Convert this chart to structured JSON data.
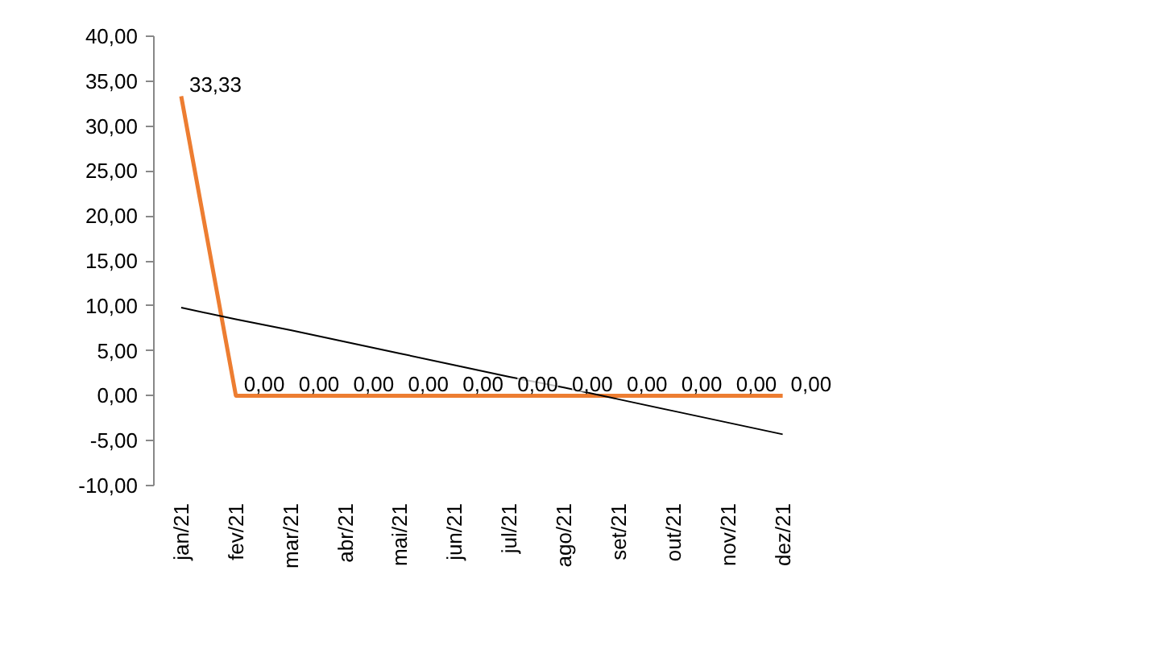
{
  "chart_data": {
    "type": "line",
    "categories": [
      "jan/21",
      "fev/21",
      "mar/21",
      "abr/21",
      "mai/21",
      "jun/21",
      "jul/21",
      "ago/21",
      "set/21",
      "out/21",
      "nov/21",
      "dez/21"
    ],
    "series": [
      {
        "color": "#ed7d31",
        "values": [
          33.33,
          0,
          0,
          0,
          0,
          0,
          0,
          0,
          0,
          0,
          0,
          0
        ],
        "value_labels": [
          "33,33",
          "0,00",
          "0,00",
          "0,00",
          "0,00",
          "0,00",
          "0,00",
          "0,00",
          "0,00",
          "0,00",
          "0,00",
          "0,00"
        ]
      },
      {
        "type": "line",
        "color": "#000000",
        "values": [
          9.8,
          8.5,
          7.3,
          6.0,
          4.7,
          3.4,
          2.1,
          0.9,
          -0.4,
          -1.7,
          -3.0,
          -4.3
        ]
      }
    ],
    "ylim": [
      -10,
      40
    ],
    "yticks": [
      {
        "value": -10,
        "label": "-10,00"
      },
      {
        "value": -5,
        "label": "-5,00"
      },
      {
        "value": 0,
        "label": "0,00"
      },
      {
        "value": 5,
        "label": "5,00"
      },
      {
        "value": 10,
        "label": "10,00"
      },
      {
        "value": 15,
        "label": "15,00"
      },
      {
        "value": 20,
        "label": "20,00"
      },
      {
        "value": 25,
        "label": "25,00"
      },
      {
        "value": 30,
        "label": "30,00"
      },
      {
        "value": 35,
        "label": "35,00"
      },
      {
        "value": 40,
        "label": "40,00"
      }
    ],
    "grid": false,
    "marker": "none",
    "line_style": "solid"
  }
}
